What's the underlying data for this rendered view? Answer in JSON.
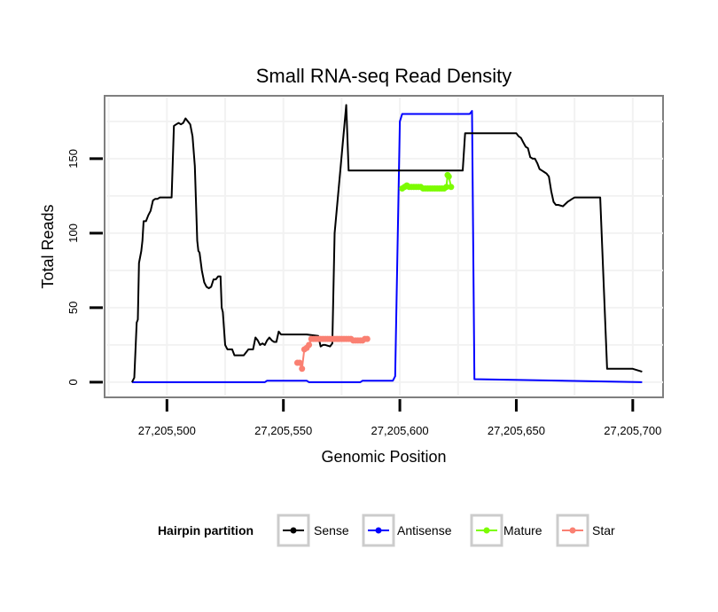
{
  "chart_data": {
    "type": "line",
    "title": "Small RNA-seq Read Density",
    "xlabel": "Genomic Position",
    "ylabel": "Total Reads",
    "xlim": [
      27205474,
      27205713
    ],
    "ylim": [
      -9,
      191
    ],
    "x_ticks": [
      27205500,
      27205550,
      27205600,
      27205650,
      27205700
    ],
    "x_tick_labels": [
      "27,205,500",
      "27,205,550",
      "27,205,600",
      "27,205,650",
      "27,205,700"
    ],
    "y_ticks": [
      0,
      50,
      100,
      150
    ],
    "y_tick_labels": [
      "0",
      "50",
      "100",
      "150"
    ],
    "grid": true,
    "legend": {
      "title": "Hairpin partition",
      "position": "bottom",
      "entries": [
        {
          "name": "Sense",
          "color": "#000000"
        },
        {
          "name": "Antisense",
          "color": "#0000ff"
        },
        {
          "name": "Mature",
          "color": "#7cfc00"
        },
        {
          "name": "Star",
          "color": "#fa8072"
        }
      ]
    },
    "series": [
      {
        "name": "Sense",
        "color": "#000000",
        "style": "line",
        "x": [
          27205485,
          27205486,
          27205487,
          27205487.5,
          27205488,
          27205489,
          27205489.5,
          27205490,
          27205491,
          27205492,
          27205493,
          27205494,
          27205495,
          27205496,
          27205497,
          27205498,
          27205500,
          27205502,
          27205503,
          27205504,
          27205505,
          27205506,
          27205507,
          27205508,
          27205509,
          27205510,
          27205511,
          27205512,
          27205513,
          27205513.5,
          27205514,
          27205515,
          27205516,
          27205517,
          27205518,
          27205519,
          27205520,
          27205521,
          27205522,
          27205523,
          27205523.5,
          27205524,
          27205525,
          27205526,
          27205527,
          27205528,
          27205529,
          27205530,
          27205530.5,
          27205531,
          27205532,
          27205533,
          27205535,
          27205535.5,
          27205537,
          27205538,
          27205539,
          27205540,
          27205541,
          27205542,
          27205543,
          27205544,
          27205545,
          27205546,
          27205547,
          27205548,
          27205549,
          27205550,
          27205551,
          27205552,
          27205553,
          27205554,
          27205555,
          27205560,
          27205565,
          27205566,
          27205567,
          27205568,
          27205570,
          27205571,
          27205572,
          27205577,
          27205578,
          27205580
        ],
        "y": [
          0,
          3,
          40,
          42,
          80,
          88,
          95,
          108,
          108,
          112,
          115,
          122,
          123,
          123,
          124,
          124,
          124,
          124,
          172,
          173,
          174,
          173,
          174,
          177,
          175,
          173,
          165,
          145,
          95,
          88,
          87,
          75,
          67,
          64,
          63,
          64,
          69,
          69,
          71,
          71,
          50,
          47,
          25,
          22,
          22,
          22,
          18,
          18,
          18,
          18,
          18,
          18,
          22,
          22,
          22,
          30,
          28,
          25,
          26,
          25,
          28,
          30,
          28,
          27,
          27,
          34,
          32,
          32,
          32,
          32,
          32,
          32,
          32,
          32,
          31,
          24,
          25,
          25,
          24,
          26,
          100,
          186,
          142,
          142
        ],
        "x2": [
          27205580,
          27205583,
          27205584,
          27205585,
          27205586,
          27205599,
          27205600,
          27205601,
          27205601.5,
          27205602,
          27205603,
          27205604,
          27205605,
          27205606,
          27205607,
          27205608,
          27205609,
          27205610,
          27205611,
          27205613,
          27205614,
          27205615,
          27205616,
          27205617,
          27205620,
          27205621,
          27205622,
          27205624,
          27205625,
          27205626,
          27205627,
          27205628,
          27205630,
          27205631,
          27205632,
          27205633,
          27205645,
          27205648,
          27205650,
          27205651,
          27205652,
          27205653,
          27205654,
          27205655,
          27205656,
          27205657,
          27205658,
          27205659,
          27205660,
          27205661,
          27205662,
          27205663,
          27205664,
          27205665,
          27205666,
          27205667,
          27205668,
          27205670,
          27205672,
          27205673,
          27205674,
          27205675,
          27205676,
          27205677,
          27205678,
          27205680,
          27205686,
          27205689,
          27205692,
          27205700,
          27205702,
          27205704
        ],
        "y2": [
          142,
          142,
          142,
          142,
          142,
          142,
          142,
          142,
          142,
          142,
          142,
          142,
          142,
          142,
          142,
          142,
          142,
          142,
          142,
          142,
          142,
          142,
          142,
          142,
          142,
          142,
          142,
          142,
          142,
          142,
          142,
          167,
          167,
          167,
          167,
          167,
          167,
          167,
          167,
          165,
          164,
          161,
          158,
          157,
          151,
          150,
          150,
          147,
          143,
          142,
          141,
          140,
          138,
          128,
          121,
          119,
          119,
          118,
          121,
          122,
          123,
          124,
          124,
          124,
          124,
          124,
          124,
          9,
          9,
          9,
          8,
          7,
          6
        ]
      },
      {
        "name": "Antisense",
        "color": "#0000ff",
        "style": "line",
        "x": [
          27205485,
          27205542,
          27205543,
          27205560,
          27205561,
          27205583,
          27205584,
          27205597,
          27205598,
          27205600,
          27205601,
          27205630,
          27205631,
          27205632,
          27205704
        ],
        "y": [
          0,
          0,
          1,
          1,
          0,
          0,
          1,
          1,
          4,
          175,
          180,
          180,
          182,
          2,
          0
        ]
      },
      {
        "name": "Mature",
        "color": "#7cfc00",
        "style": "points",
        "x": [
          27205601,
          27205602,
          27205603,
          27205604,
          27205605,
          27205606,
          27205607,
          27205608,
          27205609,
          27205610,
          27205611,
          27205612,
          27205613,
          27205614,
          27205615,
          27205616,
          27205617,
          27205618,
          27205619,
          27205620,
          27205620.5,
          27205621,
          27205622
        ],
        "y": [
          130,
          131,
          132,
          131,
          131,
          131,
          131,
          131,
          131,
          130,
          130,
          130,
          130,
          130,
          130,
          130,
          130,
          130,
          130,
          131,
          139,
          138,
          131
        ]
      },
      {
        "name": "Star",
        "color": "#fa8072",
        "style": "points",
        "x": [
          27205556,
          27205557,
          27205558,
          27205559,
          27205560,
          27205561,
          27205562,
          27205563,
          27205564,
          27205565,
          27205566,
          27205567,
          27205568,
          27205569,
          27205570,
          27205571,
          27205572,
          27205573,
          27205574,
          27205575,
          27205576,
          27205577,
          27205578,
          27205579,
          27205580,
          27205581,
          27205582,
          27205583,
          27205584,
          27205585,
          27205586
        ],
        "y": [
          13,
          13,
          9,
          22,
          23,
          25,
          29,
          29,
          29,
          29,
          29,
          29,
          29,
          29,
          29,
          29,
          29,
          29,
          29,
          29,
          29,
          29,
          29,
          29,
          28,
          28,
          28,
          28,
          28,
          29,
          29
        ]
      }
    ]
  }
}
